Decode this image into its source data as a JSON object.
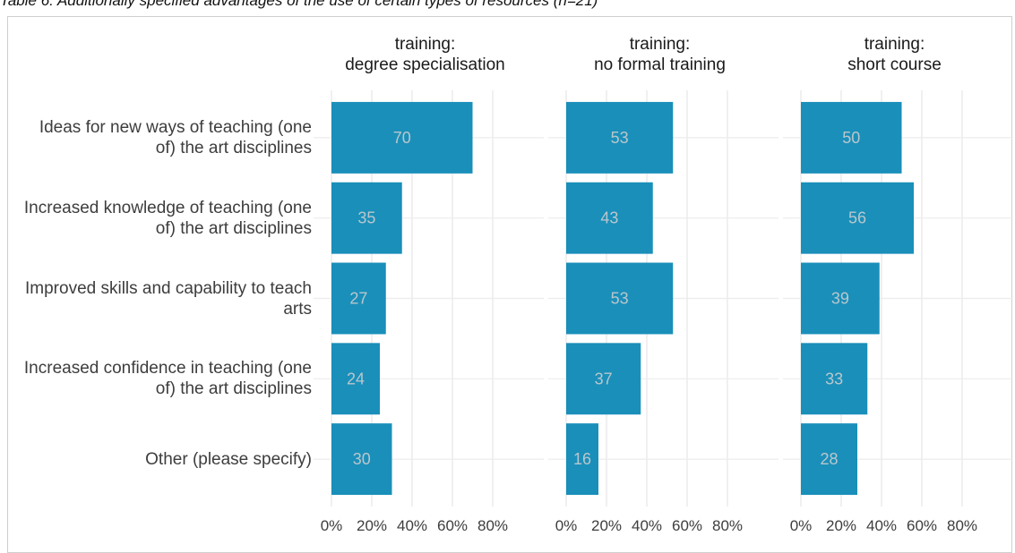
{
  "caption": "Table 6: Additionally specified advantages of the use of certain types of resources (n=21)",
  "chart_data": {
    "type": "bar",
    "orientation": "horizontal",
    "color": "#1a8fba",
    "value_label_color": "#b9c7cc",
    "categories": [
      "Ideas for new ways of teaching (one of) the art disciplines",
      "Increased knowledge of teaching (one of) the art disciplines",
      "Improved skills and capability to teach arts",
      "Increased confidence in teaching (one of) the art disciplines",
      "Other (please specify)"
    ],
    "facets": [
      {
        "title": "training:\ndegree specialisation",
        "values": [
          70,
          35,
          27,
          24,
          30
        ]
      },
      {
        "title": "training:\nno formal training",
        "values": [
          53,
          43,
          53,
          37,
          16
        ]
      },
      {
        "title": "training:\nshort course",
        "values": [
          50,
          56,
          39,
          33,
          28
        ]
      }
    ],
    "xlim": [
      0,
      100
    ],
    "xticks": [
      {
        "value": 0,
        "label": "0%"
      },
      {
        "value": 20,
        "label": "20%"
      },
      {
        "value": 40,
        "label": "40%"
      },
      {
        "value": 60,
        "label": "60%"
      },
      {
        "value": 80,
        "label": "80%"
      }
    ],
    "grid": true
  }
}
